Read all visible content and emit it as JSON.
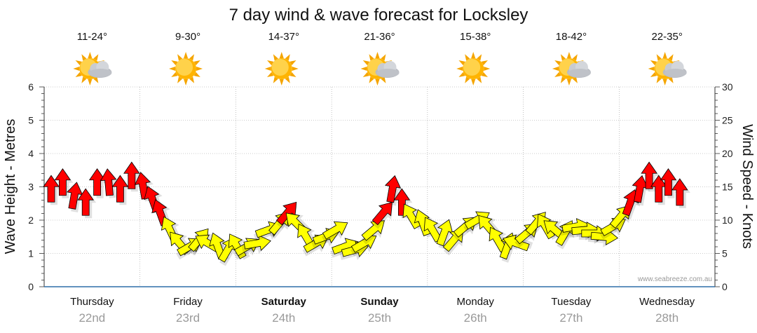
{
  "chart_data": {
    "type": "line",
    "title": "7 day wind & wave forecast for Locksley",
    "ylabel": "Wave Height - Metres",
    "y2label": "Wind Speed - Knots",
    "ylim": [
      0,
      6
    ],
    "y2lim": [
      0,
      30
    ],
    "yticks": [
      "0",
      "1",
      "2",
      "3",
      "4",
      "5",
      "6"
    ],
    "y2ticks": [
      "0",
      "5",
      "10",
      "15",
      "20",
      "25",
      "30"
    ],
    "grid": true,
    "credit": "www.seabreeze.com.au",
    "days": [
      {
        "day": "Thursday",
        "date": "22nd",
        "temp": "11-24°",
        "weather": "partly-cloudy",
        "bold": false
      },
      {
        "day": "Friday",
        "date": "23rd",
        "temp": "9-30°",
        "weather": "sunny",
        "bold": false
      },
      {
        "day": "Saturday",
        "date": "24th",
        "temp": "14-37°",
        "weather": "sunny",
        "bold": true
      },
      {
        "day": "Sunday",
        "date": "25th",
        "temp": "21-36°",
        "weather": "partly-cloudy",
        "bold": true
      },
      {
        "day": "Monday",
        "date": "26th",
        "temp": "15-38°",
        "weather": "sunny",
        "bold": false
      },
      {
        "day": "Tuesday",
        "date": "27th",
        "temp": "18-42°",
        "weather": "partly-cloudy",
        "bold": false
      },
      {
        "day": "Wednesday",
        "date": "28th",
        "temp": "22-35°",
        "weather": "partly-cloudy",
        "bold": false
      }
    ],
    "series": [
      {
        "name": "Wind",
        "units": "knots",
        "colors": {
          "light": "#ffff00",
          "strong": "#ff0000",
          "threshold": 11
        },
        "points": [
          {
            "t": 0.0,
            "speed": 14.5,
            "dir": 0
          },
          {
            "t": 0.12,
            "speed": 15.5,
            "dir": 0
          },
          {
            "t": 0.24,
            "speed": 13.5,
            "dir": 10
          },
          {
            "t": 0.36,
            "speed": 12.5,
            "dir": 0
          },
          {
            "t": 0.48,
            "speed": 15.5,
            "dir": 0
          },
          {
            "t": 0.6,
            "speed": 15.5,
            "dir": -5
          },
          {
            "t": 0.72,
            "speed": 14.5,
            "dir": 0
          },
          {
            "t": 0.84,
            "speed": 16.5,
            "dir": 0
          },
          {
            "t": 0.96,
            "speed": 15.0,
            "dir": -10
          },
          {
            "t": 1.06,
            "speed": 13.0,
            "dir": -20
          },
          {
            "t": 1.14,
            "speed": 11.0,
            "dir": -20
          },
          {
            "t": 1.24,
            "speed": 8.5,
            "dir": -25
          },
          {
            "t": 1.34,
            "speed": 6.5,
            "dir": -40
          },
          {
            "t": 1.44,
            "speed": 6.0,
            "dir": 60
          },
          {
            "t": 1.54,
            "speed": 7.0,
            "dir": 40
          },
          {
            "t": 1.64,
            "speed": 6.5,
            "dir": -60
          },
          {
            "t": 1.74,
            "speed": 6.0,
            "dir": -20
          },
          {
            "t": 1.84,
            "speed": 5.5,
            "dir": 30
          },
          {
            "t": 1.94,
            "speed": 6.0,
            "dir": -30
          },
          {
            "t": 2.04,
            "speed": 6.0,
            "dir": 60
          },
          {
            "t": 2.14,
            "speed": 6.5,
            "dir": 80
          },
          {
            "t": 2.26,
            "speed": 8.5,
            "dir": 70
          },
          {
            "t": 2.38,
            "speed": 9.5,
            "dir": 40
          },
          {
            "t": 2.46,
            "speed": 11.0,
            "dir": 40
          },
          {
            "t": 2.56,
            "speed": 9.5,
            "dir": -45
          },
          {
            "t": 2.66,
            "speed": 7.5,
            "dir": -30
          },
          {
            "t": 2.76,
            "speed": 6.5,
            "dir": 60
          },
          {
            "t": 2.86,
            "speed": 7.5,
            "dir": 70
          },
          {
            "t": 2.96,
            "speed": 8.5,
            "dir": 60
          },
          {
            "t": 3.06,
            "speed": 6.0,
            "dir": 70
          },
          {
            "t": 3.16,
            "speed": 5.5,
            "dir": 75
          },
          {
            "t": 3.26,
            "speed": 6.5,
            "dir": 60
          },
          {
            "t": 3.36,
            "speed": 8.5,
            "dir": 50
          },
          {
            "t": 3.46,
            "speed": 11.0,
            "dir": 40
          },
          {
            "t": 3.56,
            "speed": 14.5,
            "dir": 10
          },
          {
            "t": 3.66,
            "speed": 12.5,
            "dir": 0
          },
          {
            "t": 3.76,
            "speed": 10.5,
            "dir": -30
          },
          {
            "t": 3.88,
            "speed": 9.5,
            "dir": -20
          },
          {
            "t": 3.98,
            "speed": 8.5,
            "dir": -30
          },
          {
            "t": 4.1,
            "speed": 8.0,
            "dir": 20
          },
          {
            "t": 4.2,
            "speed": 7.0,
            "dir": 40
          },
          {
            "t": 4.32,
            "speed": 9.0,
            "dir": 50
          },
          {
            "t": 4.44,
            "speed": 10.0,
            "dir": 60
          },
          {
            "t": 4.56,
            "speed": 9.0,
            "dir": -40
          },
          {
            "t": 4.66,
            "speed": 7.0,
            "dir": -30
          },
          {
            "t": 4.76,
            "speed": 6.0,
            "dir": 20
          },
          {
            "t": 4.86,
            "speed": 6.5,
            "dir": -70
          },
          {
            "t": 4.96,
            "speed": 8.0,
            "dir": 50
          },
          {
            "t": 5.06,
            "speed": 9.5,
            "dir": 40
          },
          {
            "t": 5.16,
            "speed": 9.0,
            "dir": -30
          },
          {
            "t": 5.26,
            "speed": 8.5,
            "dir": -50
          },
          {
            "t": 5.36,
            "speed": 8.0,
            "dir": 30
          },
          {
            "t": 5.46,
            "speed": 9.0,
            "dir": 80
          },
          {
            "t": 5.56,
            "speed": 8.5,
            "dir": 85
          },
          {
            "t": 5.66,
            "speed": 8.0,
            "dir": 90
          },
          {
            "t": 5.76,
            "speed": 7.5,
            "dir": 95
          },
          {
            "t": 5.86,
            "speed": 9.0,
            "dir": 60
          },
          {
            "t": 5.94,
            "speed": 10.5,
            "dir": 40
          },
          {
            "t": 6.04,
            "speed": 12.5,
            "dir": 20
          },
          {
            "t": 6.14,
            "speed": 14.5,
            "dir": 10
          },
          {
            "t": 6.24,
            "speed": 16.5,
            "dir": 0
          },
          {
            "t": 6.34,
            "speed": 14.5,
            "dir": 0
          },
          {
            "t": 6.44,
            "speed": 15.5,
            "dir": 0
          },
          {
            "t": 6.56,
            "speed": 14.0,
            "dir": 0
          }
        ]
      }
    ]
  }
}
